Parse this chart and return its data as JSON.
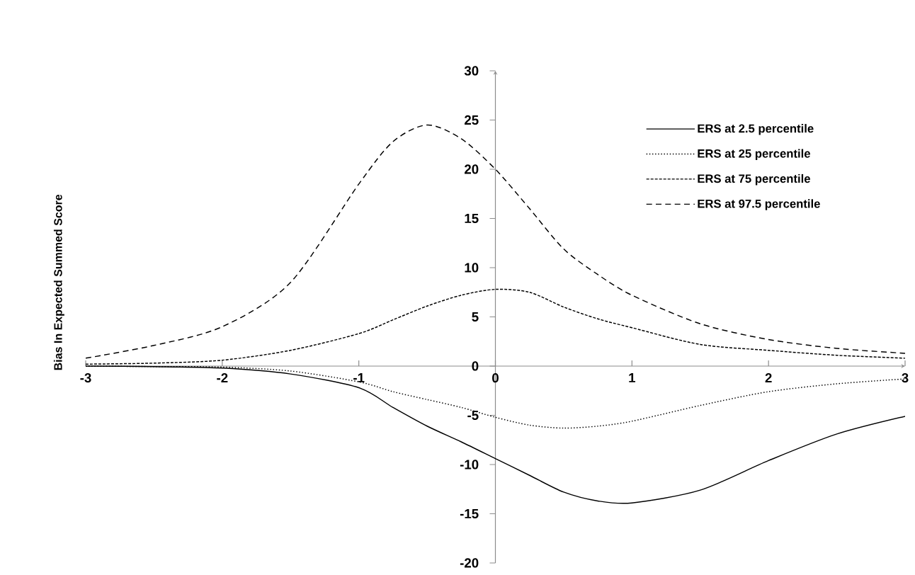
{
  "chart_data": {
    "type": "line",
    "ylabel": "Bias In Expected Summed Score",
    "x": [
      -3,
      -2.5,
      -2,
      -1.5,
      -1,
      -0.75,
      -0.5,
      -0.25,
      0,
      0.25,
      0.5,
      0.75,
      1,
      1.5,
      2,
      2.5,
      3
    ],
    "series": [
      {
        "name": "ERS at 2.5 percentile",
        "color": "#000000",
        "line_style": "solid",
        "values": [
          0,
          -0.05,
          -0.2,
          -0.8,
          -2.2,
          -4.2,
          -6.1,
          -7.7,
          -9.4,
          -11.1,
          -12.8,
          -13.7,
          -13.9,
          -12.6,
          -9.6,
          -6.9,
          -5.1
        ]
      },
      {
        "name": "ERS at 25 percentile",
        "color": "#000000",
        "line_style": "dotted",
        "values": [
          0,
          -0.05,
          -0.1,
          -0.5,
          -1.6,
          -2.6,
          -3.4,
          -4.2,
          -5.2,
          -6.0,
          -6.3,
          -6.1,
          -5.6,
          -4.0,
          -2.6,
          -1.8,
          -1.3
        ]
      },
      {
        "name": "ERS at 75 percentile",
        "color": "#000000",
        "line_style": "dashed",
        "values": [
          0.2,
          0.3,
          0.6,
          1.6,
          3.3,
          4.7,
          6.1,
          7.2,
          7.8,
          7.5,
          6.0,
          4.8,
          3.9,
          2.2,
          1.6,
          1.1,
          0.8
        ]
      },
      {
        "name": "ERS at 97.5 percentile",
        "color": "#000000",
        "line_style": "longdashed",
        "values": [
          0.8,
          2.1,
          4.0,
          8.5,
          18.5,
          22.8,
          24.5,
          23.1,
          20.0,
          16.0,
          11.9,
          9.3,
          7.2,
          4.3,
          2.7,
          1.8,
          1.3
        ]
      }
    ],
    "xlim": [
      -3,
      3
    ],
    "xticks": [
      -3,
      -2,
      -1,
      0,
      1,
      2,
      3
    ],
    "ylim": [
      -20,
      30
    ],
    "yticks": [
      -20,
      -15,
      -10,
      -5,
      0,
      5,
      10,
      15,
      20,
      25,
      30
    ],
    "legend": "top right",
    "grid": false
  }
}
